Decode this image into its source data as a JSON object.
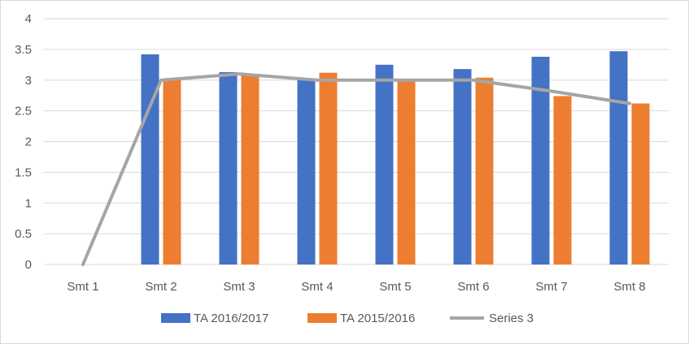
{
  "chart_data": {
    "type": "bar",
    "title": "",
    "xlabel": "",
    "ylabel": "",
    "categories": [
      "Smt 1",
      "Smt 2",
      "Smt 3",
      "Smt 4",
      "Smt 5",
      "Smt 6",
      "Smt 7",
      "Smt 8"
    ],
    "series": [
      {
        "name": "TA 2016/2017",
        "type": "bar",
        "color": "#4472c4",
        "values": [
          null,
          3.42,
          3.13,
          3.0,
          3.25,
          3.18,
          3.38,
          3.47
        ]
      },
      {
        "name": "TA 2015/2016",
        "type": "bar",
        "color": "#ed7d31",
        "values": [
          null,
          3.0,
          3.1,
          3.12,
          3.0,
          3.04,
          2.74,
          2.62
        ]
      },
      {
        "name": "Series 3",
        "type": "line",
        "color": "#a5a5a5",
        "values": [
          0,
          3.0,
          3.1,
          3.0,
          3.0,
          3.0,
          2.82,
          2.62
        ]
      }
    ],
    "ylim": [
      0,
      4
    ],
    "yticks": [
      "0",
      "0.5",
      "1",
      "1.5",
      "2",
      "2.5",
      "3",
      "3.5",
      "4"
    ],
    "grid": true,
    "legend_position": "bottom"
  }
}
